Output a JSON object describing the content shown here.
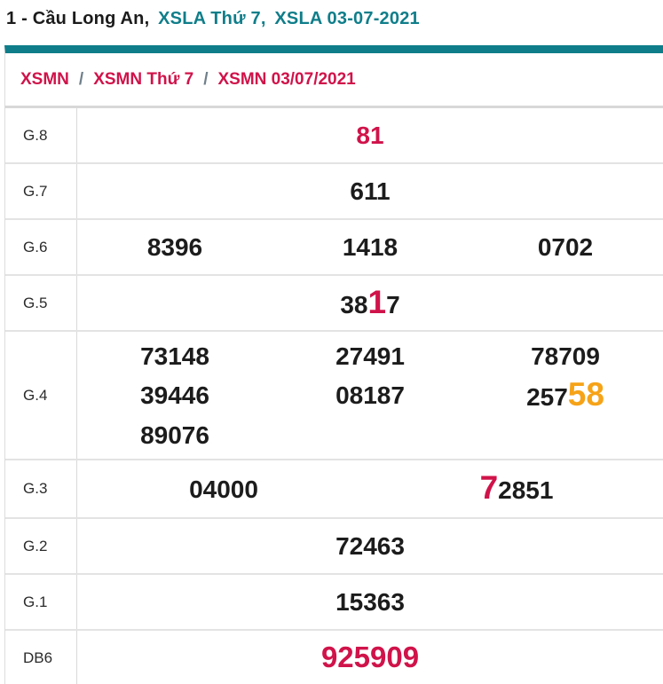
{
  "title": {
    "part_black": "1 - Cầu Long An,",
    "part_link_1": "XSLA Thứ 7,",
    "part_link_2": "XSLA 03-07-2021"
  },
  "breadcrumb": {
    "separator": "/",
    "items": [
      "XSMN",
      "XSMN Thứ 7",
      "XSMN 03/07/2021"
    ]
  },
  "colors": {
    "teal_accent": "#0f7e8a",
    "red_highlight": "#d0134a",
    "orange_highlight": "#f6a318"
  },
  "results_table": {
    "rows": [
      {
        "id": "g8",
        "label": "G.8",
        "cols": 1,
        "cells": [
          [
            {
              "t": "81",
              "s": "red"
            }
          ]
        ]
      },
      {
        "id": "g7",
        "label": "G.7",
        "cols": 1,
        "cells": [
          [
            {
              "t": "611"
            }
          ]
        ]
      },
      {
        "id": "g6",
        "label": "G.6",
        "cols": 3,
        "cells": [
          [
            {
              "t": "8396"
            }
          ],
          [
            {
              "t": "1418"
            }
          ],
          [
            {
              "t": "0702"
            }
          ]
        ]
      },
      {
        "id": "g5",
        "label": "G.5",
        "cols": 1,
        "cells": [
          [
            {
              "t": "38"
            },
            {
              "t": "1",
              "s": "redBig"
            },
            {
              "t": "7"
            }
          ]
        ]
      },
      {
        "id": "g4",
        "label": "G.4",
        "cols": 3,
        "cells": [
          [
            {
              "t": "73148"
            }
          ],
          [
            {
              "t": "27491"
            }
          ],
          [
            {
              "t": "78709"
            }
          ],
          [
            {
              "t": "39446"
            }
          ],
          [
            {
              "t": "08187"
            }
          ],
          [
            {
              "t": "257"
            },
            {
              "t": "58",
              "s": "orangeBig"
            }
          ],
          [
            {
              "t": "89076"
            }
          ]
        ]
      },
      {
        "id": "g3",
        "label": "G.3",
        "cols": 2,
        "cells": [
          [
            {
              "t": "04000"
            }
          ],
          [
            {
              "t": "7",
              "s": "redBig"
            },
            {
              "t": "2851"
            }
          ]
        ]
      },
      {
        "id": "g2",
        "label": "G.2",
        "cols": 1,
        "cells": [
          [
            {
              "t": "72463"
            }
          ]
        ]
      },
      {
        "id": "g1",
        "label": "G.1",
        "cols": 1,
        "cells": [
          [
            {
              "t": "15363"
            }
          ]
        ]
      },
      {
        "id": "db6",
        "label": "DB6",
        "cols": 1,
        "cells": [
          [
            {
              "t": "925909",
              "s": "redDb"
            }
          ]
        ]
      }
    ]
  }
}
